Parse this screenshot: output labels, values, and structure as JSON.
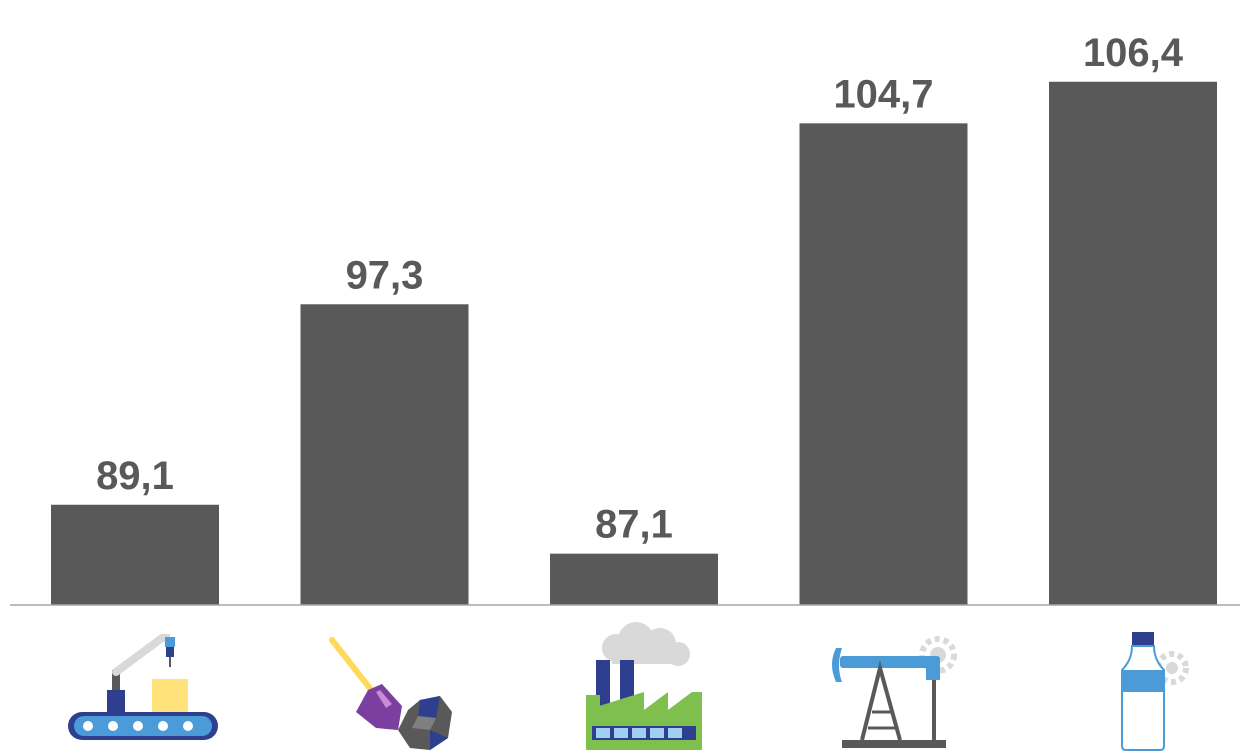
{
  "chart_data": {
    "type": "bar",
    "values": [
      89.1,
      97.3,
      87.1,
      104.7,
      106.4
    ],
    "data_labels": [
      "89,1",
      "97,3",
      "87,1",
      "104,7",
      "106,4"
    ],
    "category_icons": [
      "conveyor-robot-icon",
      "shovel-coal-icon",
      "factory-icon",
      "oil-pump-icon",
      "bottle-gear-icon"
    ],
    "title": "",
    "xlabel": "",
    "ylabel": "",
    "ylim": [
      82,
      108
    ],
    "grid": false,
    "legend": "none",
    "colors": {
      "bar": "#595959",
      "axis": "#a6a6a6",
      "label": "#595959"
    }
  }
}
